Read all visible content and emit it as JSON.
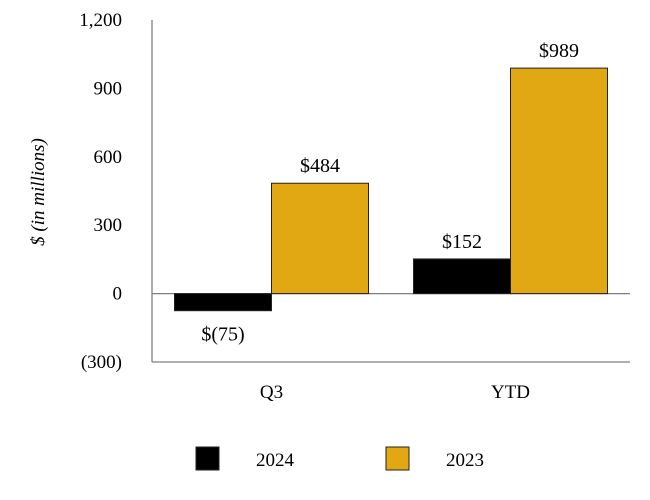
{
  "chart_data": {
    "type": "bar",
    "categories": [
      "Q3",
      "YTD"
    ],
    "series": [
      {
        "name": "2024",
        "values": [
          -75,
          152
        ],
        "labels": [
          "$(75)",
          "$152"
        ],
        "color": "#000000"
      },
      {
        "name": "2023",
        "values": [
          484,
          989
        ],
        "labels": [
          "$484",
          "$989"
        ],
        "color": "#E2A814"
      }
    ],
    "ylim": [
      -300,
      1200
    ],
    "yticks": [
      -300,
      0,
      300,
      600,
      900,
      1200
    ],
    "ytick_labels": [
      "(300)",
      "0",
      "300",
      "600",
      "900",
      "1,200"
    ],
    "ylabel": "$ (in millions)",
    "xlabel": "",
    "title": "",
    "legend_position": "bottom"
  }
}
